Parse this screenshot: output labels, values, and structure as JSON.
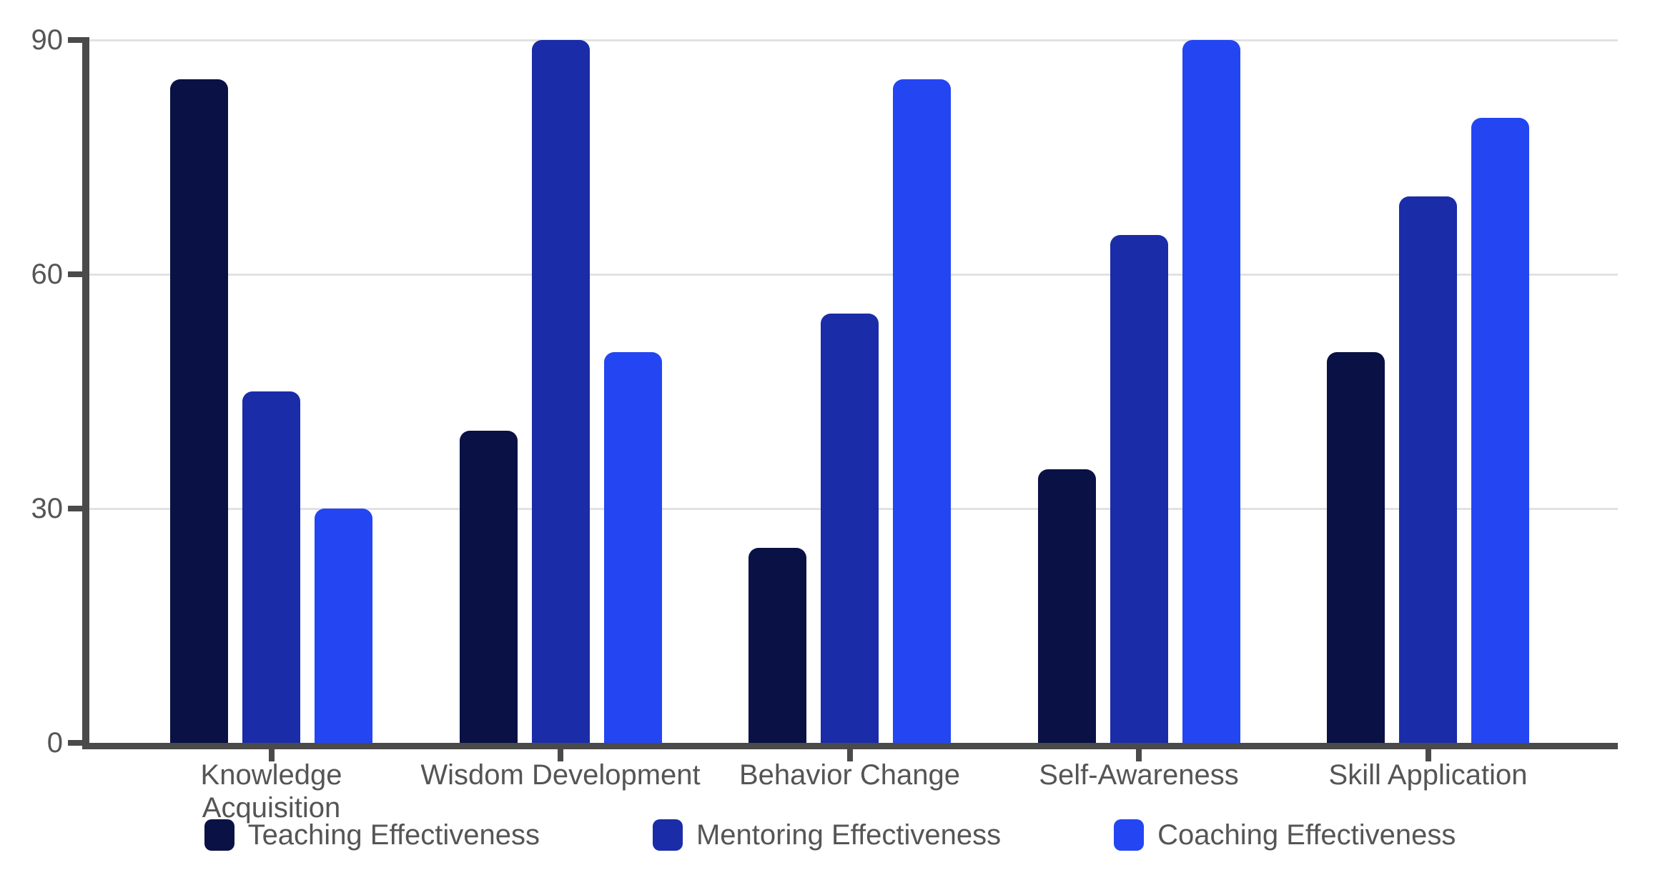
{
  "chart_data": {
    "type": "bar",
    "title": "",
    "xlabel": "",
    "ylabel": "",
    "categories": [
      "Knowledge Acquisition",
      "Wisdom Development",
      "Behavior Change",
      "Self-Awareness",
      "Skill Application"
    ],
    "category_lines": [
      [
        "Knowledge",
        "Acquisition"
      ],
      [
        "Wisdom Development"
      ],
      [
        "Behavior Change"
      ],
      [
        "Self-Awareness"
      ],
      [
        "Skill Application"
      ]
    ],
    "series": [
      {
        "name": "Teaching Effectiveness",
        "color": "#0A1144",
        "values": [
          85,
          40,
          25,
          35,
          50
        ]
      },
      {
        "name": "Mentoring Effectiveness",
        "color": "#1A2CA8",
        "values": [
          45,
          90,
          55,
          65,
          70
        ]
      },
      {
        "name": "Coaching Effectiveness",
        "color": "#2346F2",
        "values": [
          30,
          50,
          85,
          90,
          80
        ]
      }
    ],
    "yticks": [
      0,
      30,
      60,
      90
    ],
    "ylim": [
      0,
      90
    ],
    "grid": true,
    "legend_position": "bottom",
    "colors": {
      "axis": "#4A4A4A",
      "grid": "#E2E2E2",
      "text": "#555555",
      "background": "#FFFFFF"
    }
  }
}
